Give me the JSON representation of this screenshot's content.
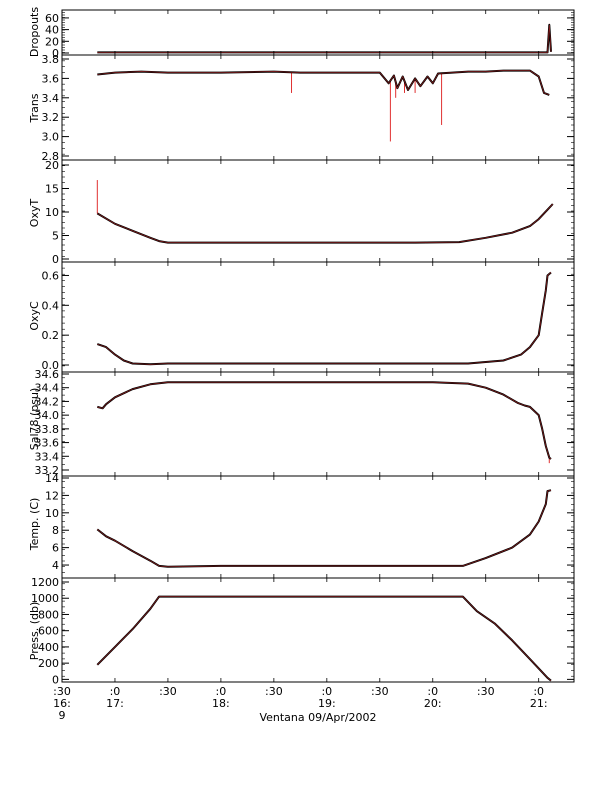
{
  "chart_data": {
    "type": "line",
    "xlabel": "Ventana 09/Apr/2002",
    "x_ticks": [
      {
        "time": "16:30",
        "top": ":30",
        "bottom": "16:",
        "extra": "9"
      },
      {
        "time": "17:00",
        "top": ":0",
        "bottom": "17:"
      },
      {
        "time": "17:30",
        "top": ":30",
        "bottom": ""
      },
      {
        "time": "18:00",
        "top": ":0",
        "bottom": "18:"
      },
      {
        "time": "18:30",
        "top": ":30",
        "bottom": ""
      },
      {
        "time": "19:00",
        "top": ":0",
        "bottom": "19:"
      },
      {
        "time": "19:30",
        "top": ":30",
        "bottom": ""
      },
      {
        "time": "20:00",
        "top": ":0",
        "bottom": "20:"
      },
      {
        "time": "20:30",
        "top": ":30",
        "bottom": ""
      },
      {
        "time": "21:00",
        "top": ":0",
        "bottom": "21:"
      }
    ],
    "xlim": [
      "16:30",
      "21:20"
    ],
    "colors": {
      "series": "#000000",
      "raw": "#e03030"
    },
    "panels": [
      {
        "ylabel": "Dropouts",
        "ylim": [
          0,
          65
        ],
        "yticks": [
          "60",
          "40",
          "20",
          "0"
        ],
        "ytick_values": [
          60,
          40,
          20,
          0
        ],
        "points": [
          [
            "16:50",
            1
          ],
          [
            "17:30",
            1
          ],
          [
            "18:30",
            1
          ],
          [
            "19:30",
            1
          ],
          [
            "20:30",
            1
          ],
          [
            "21:05",
            1
          ],
          [
            "21:06",
            48
          ],
          [
            "21:07",
            2
          ]
        ],
        "raw_spikes": [
          [
            "21:06",
            50
          ]
        ]
      },
      {
        "ylabel": "Trans",
        "ylim": [
          2.8,
          3.8
        ],
        "yticks": [
          "3.8",
          "3.6",
          "3.4",
          "3.2",
          "3.0",
          "2.8"
        ],
        "ytick_values": [
          3.8,
          3.6,
          3.4,
          3.2,
          3.0,
          2.8
        ],
        "points": [
          [
            "16:50",
            3.64
          ],
          [
            "17:00",
            3.66
          ],
          [
            "17:15",
            3.67
          ],
          [
            "17:30",
            3.66
          ],
          [
            "18:00",
            3.66
          ],
          [
            "18:30",
            3.67
          ],
          [
            "18:45",
            3.66
          ],
          [
            "19:00",
            3.66
          ],
          [
            "19:30",
            3.66
          ],
          [
            "19:35",
            3.55
          ],
          [
            "19:38",
            3.63
          ],
          [
            "19:40",
            3.5
          ],
          [
            "19:43",
            3.62
          ],
          [
            "19:46",
            3.48
          ],
          [
            "19:50",
            3.6
          ],
          [
            "19:53",
            3.52
          ],
          [
            "19:57",
            3.62
          ],
          [
            "20:00",
            3.55
          ],
          [
            "20:03",
            3.65
          ],
          [
            "20:20",
            3.67
          ],
          [
            "20:30",
            3.67
          ],
          [
            "20:40",
            3.68
          ],
          [
            "20:55",
            3.68
          ],
          [
            "21:00",
            3.62
          ],
          [
            "21:03",
            3.45
          ],
          [
            "21:06",
            3.43
          ]
        ],
        "raw_spikes": [
          [
            "18:40",
            3.45
          ],
          [
            "19:36",
            2.95
          ],
          [
            "19:39",
            3.4
          ],
          [
            "19:44",
            3.45
          ],
          [
            "19:50",
            3.45
          ],
          [
            "20:05",
            3.12
          ]
        ]
      },
      {
        "ylabel": "OxyT",
        "ylim": [
          0,
          20
        ],
        "yticks": [
          "20",
          "15",
          "10",
          "5",
          "0"
        ],
        "ytick_values": [
          20,
          15,
          10,
          5,
          0
        ],
        "points": [
          [
            "16:50",
            9.7
          ],
          [
            "17:00",
            7.5
          ],
          [
            "17:10",
            6.0
          ],
          [
            "17:20",
            4.5
          ],
          [
            "17:25",
            3.8
          ],
          [
            "17:30",
            3.5
          ],
          [
            "18:00",
            3.5
          ],
          [
            "19:00",
            3.5
          ],
          [
            "19:50",
            3.5
          ],
          [
            "20:15",
            3.6
          ],
          [
            "20:30",
            4.5
          ],
          [
            "20:45",
            5.6
          ],
          [
            "20:55",
            7.0
          ],
          [
            "21:00",
            8.5
          ],
          [
            "21:05",
            10.5
          ],
          [
            "21:08",
            11.7
          ]
        ],
        "raw_spikes": [
          [
            "16:50",
            16.8
          ]
        ]
      },
      {
        "ylabel": "OxyC",
        "ylim": [
          -0.02,
          0.65
        ],
        "yticks": [
          "0.6",
          "0.4",
          "0.2",
          "0.0"
        ],
        "ytick_values": [
          0.6,
          0.4,
          0.2,
          0.0
        ],
        "points": [
          [
            "16:50",
            0.14
          ],
          [
            "16:55",
            0.12
          ],
          [
            "17:00",
            0.07
          ],
          [
            "17:05",
            0.03
          ],
          [
            "17:10",
            0.01
          ],
          [
            "17:20",
            0.005
          ],
          [
            "17:30",
            0.01
          ],
          [
            "18:00",
            0.01
          ],
          [
            "19:00",
            0.01
          ],
          [
            "20:00",
            0.01
          ],
          [
            "20:20",
            0.01
          ],
          [
            "20:40",
            0.03
          ],
          [
            "20:50",
            0.07
          ],
          [
            "20:55",
            0.12
          ],
          [
            "21:00",
            0.2
          ],
          [
            "21:02",
            0.35
          ],
          [
            "21:04",
            0.5
          ],
          [
            "21:05",
            0.6
          ],
          [
            "21:07",
            0.62
          ]
        ],
        "raw_spikes": []
      },
      {
        "ylabel": "Sal78 (psu)",
        "ylim": [
          33.2,
          34.6
        ],
        "yticks": [
          "34.6",
          "34.4",
          "34.2",
          "34.0",
          "33.8",
          "33.6",
          "33.4",
          "33.2"
        ],
        "ytick_values": [
          34.6,
          34.4,
          34.2,
          34.0,
          33.8,
          33.6,
          33.4,
          33.2
        ],
        "points": [
          [
            "16:50",
            34.12
          ],
          [
            "16:53",
            34.1
          ],
          [
            "16:55",
            34.16
          ],
          [
            "17:00",
            34.26
          ],
          [
            "17:10",
            34.38
          ],
          [
            "17:20",
            34.45
          ],
          [
            "17:30",
            34.48
          ],
          [
            "18:00",
            34.48
          ],
          [
            "19:00",
            34.48
          ],
          [
            "20:00",
            34.48
          ],
          [
            "20:20",
            34.46
          ],
          [
            "20:30",
            34.4
          ],
          [
            "20:40",
            34.3
          ],
          [
            "20:48",
            34.18
          ],
          [
            "20:52",
            34.14
          ],
          [
            "20:55",
            34.12
          ],
          [
            "21:00",
            34.0
          ],
          [
            "21:02",
            33.8
          ],
          [
            "21:04",
            33.55
          ],
          [
            "21:06",
            33.38
          ],
          [
            "21:07",
            33.36
          ]
        ],
        "raw_spikes": [
          [
            "21:06",
            33.3
          ]
        ]
      },
      {
        "ylabel": "Temp. (C)",
        "ylim": [
          3.2,
          14
        ],
        "yticks": [
          "14",
          "12",
          "10",
          "8",
          "6",
          "4"
        ],
        "ytick_values": [
          14,
          12,
          10,
          8,
          6,
          4
        ],
        "points": [
          [
            "16:50",
            8.1
          ],
          [
            "16:55",
            7.3
          ],
          [
            "17:00",
            6.8
          ],
          [
            "17:10",
            5.6
          ],
          [
            "17:20",
            4.5
          ],
          [
            "17:25",
            3.9
          ],
          [
            "17:30",
            3.8
          ],
          [
            "18:00",
            3.9
          ],
          [
            "19:00",
            3.9
          ],
          [
            "20:00",
            3.9
          ],
          [
            "20:17",
            3.9
          ],
          [
            "20:30",
            4.8
          ],
          [
            "20:45",
            6.0
          ],
          [
            "20:55",
            7.5
          ],
          [
            "21:00",
            9.0
          ],
          [
            "21:04",
            11.0
          ],
          [
            "21:05",
            12.5
          ],
          [
            "21:07",
            12.6
          ]
        ],
        "raw_spikes": []
      },
      {
        "ylabel": "Press. (db)",
        "ylim": [
          -20,
          1200
        ],
        "yticks": [
          "1200",
          "1000",
          "800",
          "600",
          "400",
          "200",
          "0"
        ],
        "ytick_values": [
          1200,
          1000,
          800,
          600,
          400,
          200,
          0
        ],
        "points": [
          [
            "16:50",
            180
          ],
          [
            "17:00",
            400
          ],
          [
            "17:10",
            620
          ],
          [
            "17:20",
            870
          ],
          [
            "17:25",
            1020
          ],
          [
            "17:30",
            1020
          ],
          [
            "18:00",
            1020
          ],
          [
            "19:00",
            1020
          ],
          [
            "20:00",
            1020
          ],
          [
            "20:17",
            1020
          ],
          [
            "20:25",
            840
          ],
          [
            "20:35",
            690
          ],
          [
            "20:45",
            480
          ],
          [
            "20:55",
            250
          ],
          [
            "21:05",
            20
          ],
          [
            "21:07",
            -15
          ]
        ],
        "raw_spikes": []
      }
    ]
  }
}
